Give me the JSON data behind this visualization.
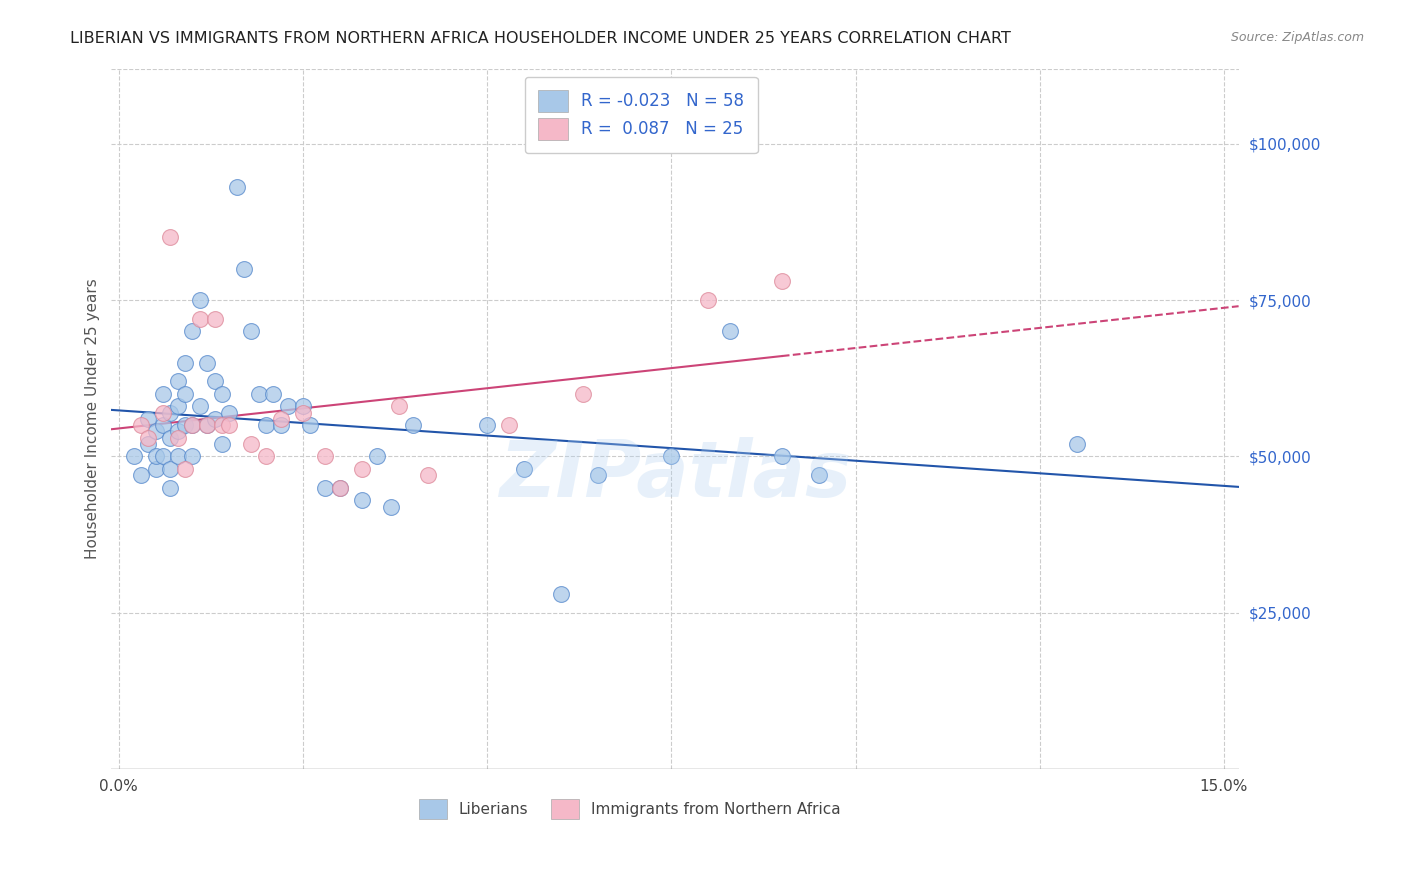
{
  "title": "LIBERIAN VS IMMIGRANTS FROM NORTHERN AFRICA HOUSEHOLDER INCOME UNDER 25 YEARS CORRELATION CHART",
  "source": "Source: ZipAtlas.com",
  "ylabel": "Householder Income Under 25 years",
  "xlim": [
    -0.001,
    0.152
  ],
  "ylim": [
    0,
    112000
  ],
  "xtick_positions": [
    0.0,
    0.025,
    0.05,
    0.075,
    0.1,
    0.125,
    0.15
  ],
  "xticklabels": [
    "0.0%",
    "",
    "",
    "",
    "",
    "",
    "15.0%"
  ],
  "yticks_right": [
    25000,
    50000,
    75000,
    100000
  ],
  "ytick_labels_right": [
    "$25,000",
    "$50,000",
    "$75,000",
    "$100,000"
  ],
  "blue_color": "#a8c8e8",
  "pink_color": "#f5b8c8",
  "blue_edge_color": "#5588cc",
  "pink_edge_color": "#dd8899",
  "blue_line_color": "#2255aa",
  "pink_line_color": "#cc4477",
  "watermark": "ZIPatlas",
  "legend_R1": "-0.023",
  "legend_N1": "58",
  "legend_R2": "0.087",
  "legend_N2": "25",
  "blue_scatter_x": [
    0.002,
    0.003,
    0.004,
    0.004,
    0.005,
    0.005,
    0.005,
    0.006,
    0.006,
    0.006,
    0.007,
    0.007,
    0.007,
    0.007,
    0.008,
    0.008,
    0.008,
    0.008,
    0.009,
    0.009,
    0.009,
    0.01,
    0.01,
    0.01,
    0.011,
    0.011,
    0.012,
    0.012,
    0.013,
    0.013,
    0.014,
    0.014,
    0.015,
    0.016,
    0.017,
    0.018,
    0.019,
    0.02,
    0.021,
    0.022,
    0.023,
    0.025,
    0.026,
    0.028,
    0.03,
    0.033,
    0.035,
    0.037,
    0.04,
    0.05,
    0.055,
    0.06,
    0.065,
    0.075,
    0.083,
    0.09,
    0.095,
    0.13
  ],
  "blue_scatter_y": [
    50000,
    47000,
    56000,
    52000,
    48000,
    54000,
    50000,
    55000,
    60000,
    50000,
    57000,
    53000,
    48000,
    45000,
    62000,
    58000,
    54000,
    50000,
    65000,
    60000,
    55000,
    70000,
    55000,
    50000,
    75000,
    58000,
    65000,
    55000,
    62000,
    56000,
    60000,
    52000,
    57000,
    93000,
    80000,
    70000,
    60000,
    55000,
    60000,
    55000,
    58000,
    58000,
    55000,
    45000,
    45000,
    43000,
    50000,
    42000,
    55000,
    55000,
    48000,
    28000,
    47000,
    50000,
    70000,
    50000,
    47000,
    52000
  ],
  "pink_scatter_x": [
    0.003,
    0.004,
    0.006,
    0.007,
    0.008,
    0.009,
    0.01,
    0.011,
    0.012,
    0.013,
    0.014,
    0.015,
    0.018,
    0.02,
    0.022,
    0.025,
    0.028,
    0.03,
    0.033,
    0.038,
    0.042,
    0.053,
    0.063,
    0.08,
    0.09
  ],
  "pink_scatter_y": [
    55000,
    53000,
    57000,
    85000,
    53000,
    48000,
    55000,
    72000,
    55000,
    72000,
    55000,
    55000,
    52000,
    50000,
    56000,
    57000,
    50000,
    45000,
    48000,
    58000,
    47000,
    55000,
    60000,
    75000,
    78000
  ]
}
